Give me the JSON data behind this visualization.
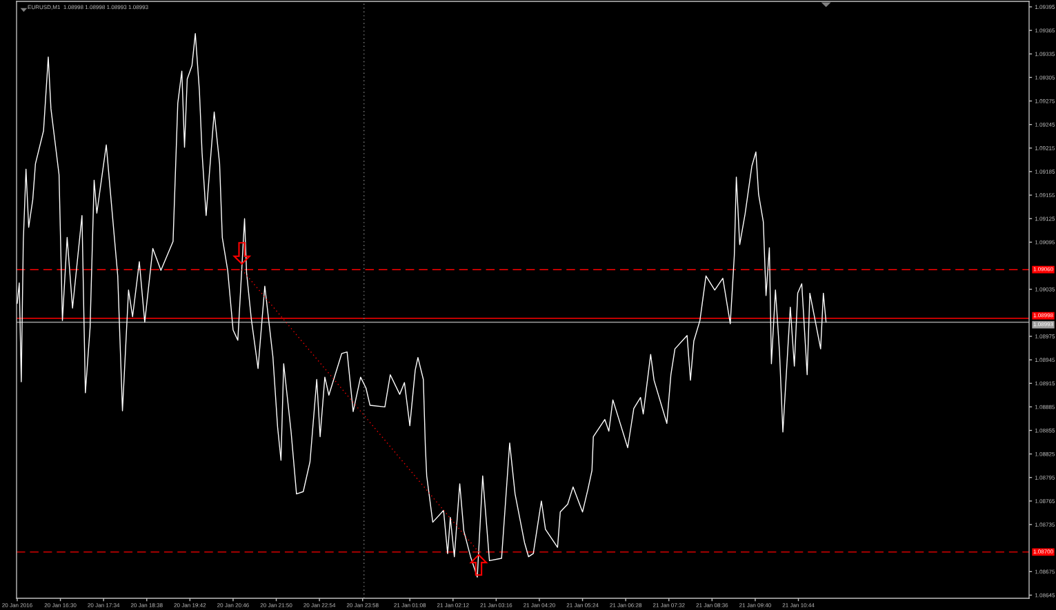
{
  "chart_data": {
    "type": "line",
    "title": "EURUSD,M1  1.08998 1.08998 1.08993 1.08993",
    "xlim": [
      "2016-01-20T15:25",
      "2016-01-21T16:26"
    ],
    "xticks": [
      {
        "value": "2016-01-20T15:26",
        "label": "20 Jan 2016"
      },
      {
        "value": "2016-01-20T16:30",
        "label": "20 Jan 16:30"
      },
      {
        "value": "2016-01-20T17:34",
        "label": "20 Jan 17:34"
      },
      {
        "value": "2016-01-20T18:38",
        "label": "20 Jan 18:38"
      },
      {
        "value": "2016-01-20T19:42",
        "label": "20 Jan 19:42"
      },
      {
        "value": "2016-01-20T20:46",
        "label": "20 Jan 20:46"
      },
      {
        "value": "2016-01-20T21:50",
        "label": "20 Jan 21:50"
      },
      {
        "value": "2016-01-20T22:54",
        "label": "20 Jan 22:54"
      },
      {
        "value": "2016-01-20T23:58",
        "label": "20 Jan 23:58"
      },
      {
        "value": "2016-01-21T01:08",
        "label": "21 Jan 01:08"
      },
      {
        "value": "2016-01-21T02:12",
        "label": "21 Jan 02:12"
      },
      {
        "value": "2016-01-21T03:16",
        "label": "21 Jan 03:16"
      },
      {
        "value": "2016-01-21T04:20",
        "label": "21 Jan 04:20"
      },
      {
        "value": "2016-01-21T05:24",
        "label": "21 Jan 05:24"
      },
      {
        "value": "2016-01-21T06:28",
        "label": "21 Jan 06:28"
      },
      {
        "value": "2016-01-21T07:32",
        "label": "21 Jan 07:32"
      },
      {
        "value": "2016-01-21T08:36",
        "label": "21 Jan 08:36"
      },
      {
        "value": "2016-01-21T09:40",
        "label": "21 Jan 09:40"
      },
      {
        "value": "2016-01-21T10:44",
        "label": "21 Jan 10:44"
      }
    ],
    "ylim": [
      1.08641,
      1.09402
    ],
    "yticks": [
      1.08645,
      1.08675,
      1.08735,
      1.08765,
      1.08795,
      1.08825,
      1.08855,
      1.08885,
      1.08915,
      1.08945,
      1.08975,
      1.09035,
      1.09095,
      1.09125,
      1.09155,
      1.09185,
      1.09215,
      1.09245,
      1.09275,
      1.09305,
      1.09335,
      1.09365,
      1.09395
    ],
    "series": [
      {
        "color": "#ffffff",
        "x": [
          "2016-01-20T15:26",
          "2016-01-20T15:29",
          "2016-01-20T15:32",
          "2016-01-20T15:35",
          "2016-01-20T15:39",
          "2016-01-20T15:43",
          "2016-01-20T15:49",
          "2016-01-20T15:53",
          "2016-01-20T16:05",
          "2016-01-20T16:12",
          "2016-01-20T16:16",
          "2016-01-20T16:28",
          "2016-01-20T16:33",
          "2016-01-20T16:40",
          "2016-01-20T16:48",
          "2016-01-20T17:02",
          "2016-01-20T17:07",
          "2016-01-20T17:14",
          "2016-01-20T17:20",
          "2016-01-20T17:24",
          "2016-01-20T17:38",
          "2016-01-20T17:44",
          "2016-01-20T17:55",
          "2016-01-20T18:02",
          "2016-01-20T18:11",
          "2016-01-20T18:17",
          "2016-01-20T18:27",
          "2016-01-20T18:35",
          "2016-01-20T18:47",
          "2016-01-20T18:59",
          "2016-01-20T19:17",
          "2016-01-20T19:24",
          "2016-01-20T19:30",
          "2016-01-20T19:34",
          "2016-01-20T19:38",
          "2016-01-20T19:45",
          "2016-01-20T19:50",
          "2016-01-20T19:56",
          "2016-01-20T20:00",
          "2016-01-20T20:06",
          "2016-01-20T20:18",
          "2016-01-20T20:26",
          "2016-01-20T20:30",
          "2016-01-20T20:38",
          "2016-01-20T20:46",
          "2016-01-20T20:53",
          "2016-01-20T21:03",
          "2016-01-20T21:06",
          "2016-01-20T21:13",
          "2016-01-20T21:23",
          "2016-01-20T21:33",
          "2016-01-20T21:45",
          "2016-01-20T21:52",
          "2016-01-20T21:57",
          "2016-01-20T22:01",
          "2016-01-20T22:12",
          "2016-01-20T22:20",
          "2016-01-20T22:30",
          "2016-01-20T22:40",
          "2016-01-20T22:50",
          "2016-01-20T22:55",
          "2016-01-20T23:02",
          "2016-01-20T23:08",
          "2016-01-20T23:27",
          "2016-01-20T23:35",
          "2016-01-20T23:44",
          "2016-01-20T23:55",
          "2016-01-21T00:03",
          "2016-01-21T00:09",
          "2016-01-21T00:31",
          "2016-01-21T00:39",
          "2016-01-21T00:53",
          "2016-01-21T01:00",
          "2016-01-21T01:08",
          "2016-01-21T01:16",
          "2016-01-21T01:20",
          "2016-01-21T01:28",
          "2016-01-21T01:31",
          "2016-01-21T01:33",
          "2016-01-21T01:42",
          "2016-01-21T01:58",
          "2016-01-21T02:04",
          "2016-01-21T02:08",
          "2016-01-21T02:14",
          "2016-01-21T02:22",
          "2016-01-21T02:28",
          "2016-01-21T02:38",
          "2016-01-21T02:48",
          "2016-01-21T02:56",
          "2016-01-21T03:06",
          "2016-01-21T03:24",
          "2016-01-21T03:36",
          "2016-01-21T03:44",
          "2016-01-21T03:58",
          "2016-01-21T04:04",
          "2016-01-21T04:11",
          "2016-01-21T04:23",
          "2016-01-21T04:29",
          "2016-01-21T04:47",
          "2016-01-21T04:51",
          "2016-01-21T05:02",
          "2016-01-21T05:10",
          "2016-01-21T05:24",
          "2016-01-21T05:32",
          "2016-01-21T05:38",
          "2016-01-21T05:40",
          "2016-01-21T05:57",
          "2016-01-21T06:03",
          "2016-01-21T06:09",
          "2016-01-21T06:31",
          "2016-01-21T06:40",
          "2016-01-21T06:50",
          "2016-01-21T06:54",
          "2016-01-21T07:05",
          "2016-01-21T07:10",
          "2016-01-21T07:29",
          "2016-01-21T07:35",
          "2016-01-21T07:41",
          "2016-01-21T07:59",
          "2016-01-21T08:04",
          "2016-01-21T08:09",
          "2016-01-21T08:18",
          "2016-01-21T08:27",
          "2016-01-21T08:40",
          "2016-01-21T08:52",
          "2016-01-21T09:03",
          "2016-01-21T09:09",
          "2016-01-21T09:12",
          "2016-01-21T09:17",
          "2016-01-21T09:25",
          "2016-01-21T09:35",
          "2016-01-21T09:41",
          "2016-01-21T09:45",
          "2016-01-21T09:52",
          "2016-01-21T09:56",
          "2016-01-21T10:01",
          "2016-01-21T10:04",
          "2016-01-21T10:10",
          "2016-01-21T10:16",
          "2016-01-21T10:21",
          "2016-01-21T10:32",
          "2016-01-21T10:38",
          "2016-01-21T10:43",
          "2016-01-21T10:49",
          "2016-01-21T10:57",
          "2016-01-21T11:01",
          "2016-01-21T11:17",
          "2016-01-21T11:21",
          "2016-01-21T11:25"
        ],
        "values": [
          1.09017,
          1.09043,
          1.08917,
          1.09096,
          1.09188,
          1.09114,
          1.09149,
          1.09195,
          1.09237,
          1.09331,
          1.09265,
          1.09181,
          1.08995,
          1.09101,
          1.09011,
          1.09129,
          1.08903,
          1.08986,
          1.09174,
          1.09132,
          1.09219,
          1.0916,
          1.09052,
          1.0888,
          1.09034,
          1.09,
          1.0907,
          1.08993,
          1.09087,
          1.09059,
          1.09096,
          1.09272,
          1.09313,
          1.09216,
          1.09303,
          1.0932,
          1.09361,
          1.09289,
          1.09209,
          1.09129,
          1.09261,
          1.09195,
          1.09101,
          1.09059,
          1.08983,
          1.0897,
          1.09125,
          1.09056,
          1.08997,
          1.08934,
          1.09039,
          1.08949,
          1.08859,
          1.08817,
          1.0894,
          1.08853,
          1.08774,
          1.08777,
          1.08815,
          1.0892,
          1.08847,
          1.08923,
          1.089,
          1.08953,
          1.08955,
          1.08879,
          1.08923,
          1.08909,
          1.08887,
          1.08885,
          1.08926,
          1.08901,
          1.08916,
          1.08861,
          1.08932,
          1.08948,
          1.0892,
          1.08835,
          1.08797,
          1.08738,
          1.08753,
          1.08698,
          1.08744,
          1.08694,
          1.08787,
          1.08727,
          1.08694,
          1.08668,
          1.08797,
          1.08689,
          1.08692,
          1.08839,
          1.08774,
          1.08712,
          1.08694,
          1.08698,
          1.08765,
          1.08729,
          1.08706,
          1.08751,
          1.08761,
          1.08783,
          1.08751,
          1.0878,
          1.08804,
          1.08847,
          1.08869,
          1.08854,
          1.08894,
          1.08833,
          1.08883,
          1.08897,
          1.08876,
          1.08952,
          1.08919,
          1.08864,
          1.08926,
          1.08959,
          1.08976,
          1.08919,
          1.08969,
          1.08995,
          1.09052,
          1.09034,
          1.09049,
          1.08991,
          1.09078,
          1.09178,
          1.09092,
          1.09131,
          1.09192,
          1.0921,
          1.09156,
          1.09121,
          1.09027,
          1.09088,
          1.0894,
          1.09034,
          1.08955,
          1.08853,
          1.09012,
          1.08937,
          1.0903,
          1.09042,
          1.08926,
          1.0903,
          1.08959,
          1.0903,
          1.08993
        ]
      },
      {
        "type": "line",
        "color": "#ff0000",
        "line_style": "dotted",
        "x": [
          "2016-01-20T20:59",
          "2016-01-21T02:50"
        ],
        "values": [
          1.0906,
          1.087
        ]
      }
    ],
    "ref_lines": [
      {
        "axis": "y",
        "value": 1.0906,
        "label": "1.09060",
        "color": "#ff0000",
        "line_style": "dashed"
      },
      {
        "axis": "y",
        "value": 1.08998,
        "label": "1.08998",
        "color": "#ff0000",
        "line_style": "solid"
      },
      {
        "axis": "y",
        "value": 1.08993,
        "label": "1.08993",
        "color": "#a0a0a0",
        "line_style": "solid"
      },
      {
        "axis": "y",
        "value": 1.087,
        "label": "1.08700",
        "color": "#ff0000",
        "line_style": "dashed"
      },
      {
        "axis": "x",
        "value": "2016-01-21T00:00",
        "color": "#808080",
        "line_style": "dotted"
      }
    ]
  }
}
